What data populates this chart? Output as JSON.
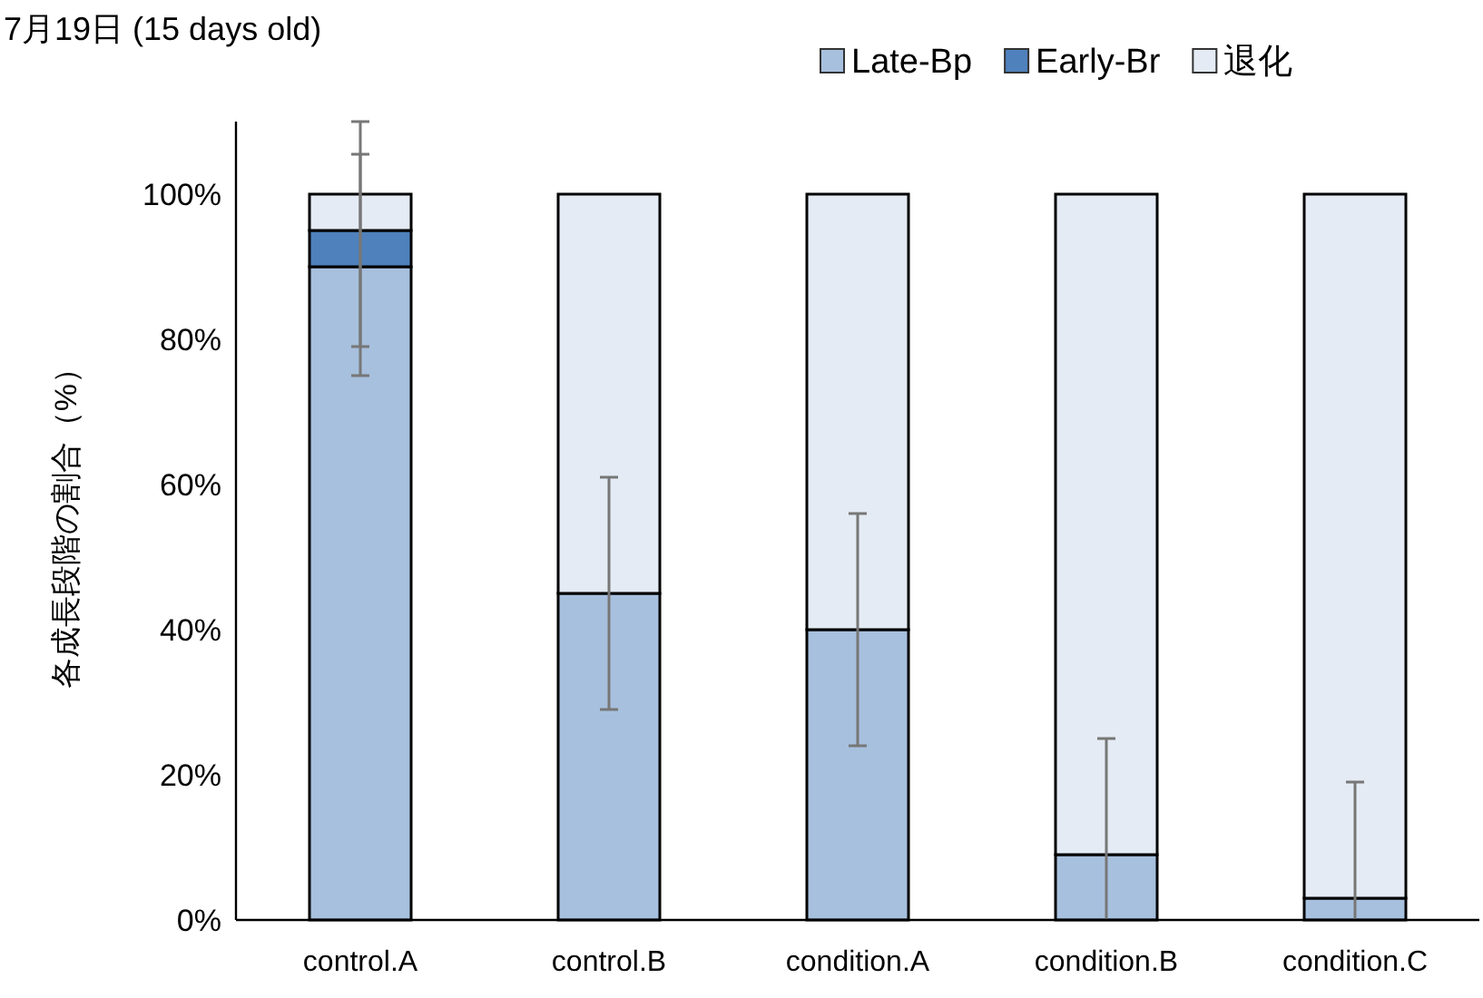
{
  "chart_data": {
    "type": "bar",
    "stacked": true,
    "title": "7月19日 (15 days old)",
    "ylabel": "各成長段階の割合（%）",
    "categories": [
      "control.A",
      "control.B",
      "condition.A",
      "condition.B",
      "condition.C"
    ],
    "series": [
      {
        "name": "Late-Bp",
        "color": "#a7c0de",
        "values": [
          90,
          45,
          40,
          9,
          3
        ],
        "errors": [
          [
            75,
            105.5
          ],
          [
            29,
            61
          ],
          [
            24,
            56
          ],
          [
            0,
            25
          ],
          [
            0,
            19
          ]
        ]
      },
      {
        "name": "Early-Br",
        "color": "#4f81bd",
        "values": [
          5,
          0,
          0,
          0,
          0
        ],
        "errors": [
          [
            79,
            110
          ],
          null,
          null,
          null,
          null
        ]
      },
      {
        "name": "退化",
        "color": "#e4ebf4",
        "values": [
          5,
          55,
          60,
          91,
          97
        ]
      }
    ],
    "ylim": [
      0,
      110
    ],
    "yticks": [
      {
        "value": 0,
        "label": "0%"
      },
      {
        "value": 20,
        "label": "20%"
      },
      {
        "value": 40,
        "label": "40%"
      },
      {
        "value": 60,
        "label": "60%"
      },
      {
        "value": 80,
        "label": "80%"
      },
      {
        "value": 100,
        "label": "100%"
      }
    ],
    "grid": false,
    "legend": "top right"
  }
}
